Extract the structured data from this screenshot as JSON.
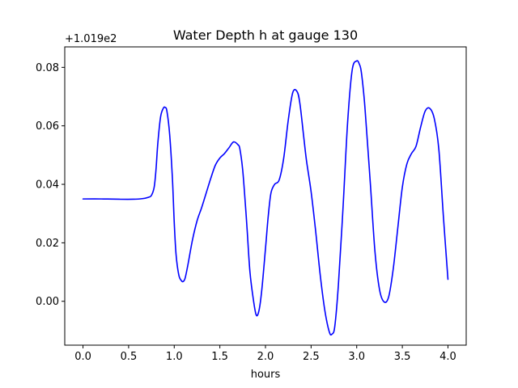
{
  "chart_data": {
    "type": "line",
    "title": "Water Depth h at gauge 130",
    "xlabel": "hours",
    "ylabel": "",
    "offset_label": "+1.019e2",
    "xlim": [
      -0.2,
      4.2
    ],
    "ylim": [
      -0.015,
      0.087
    ],
    "xticks": [
      0.0,
      0.5,
      1.0,
      1.5,
      2.0,
      2.5,
      3.0,
      3.5,
      4.0
    ],
    "xtick_labels": [
      "0.0",
      "0.5",
      "1.0",
      "1.5",
      "2.0",
      "2.5",
      "3.0",
      "3.5",
      "4.0"
    ],
    "yticks": [
      0.0,
      0.02,
      0.04,
      0.06,
      0.08
    ],
    "ytick_labels": [
      "0.00",
      "0.02",
      "0.04",
      "0.06",
      "0.08"
    ],
    "grid": false,
    "series_color": "#0000ff",
    "series": [
      {
        "x": [
          0.0,
          0.2,
          0.4,
          0.55,
          0.65,
          0.72,
          0.75,
          0.78,
          0.8,
          0.82,
          0.85,
          0.88,
          0.9,
          0.92,
          0.95,
          0.98,
          1.0,
          1.02,
          1.05,
          1.08,
          1.1,
          1.12,
          1.15,
          1.2,
          1.25,
          1.3,
          1.35,
          1.4,
          1.45,
          1.5,
          1.55,
          1.6,
          1.65,
          1.7,
          1.72,
          1.75,
          1.78,
          1.8,
          1.83,
          1.87,
          1.9,
          1.93,
          1.96,
          2.0,
          2.03,
          2.06,
          2.1,
          2.15,
          2.2,
          2.25,
          2.3,
          2.35,
          2.38,
          2.42,
          2.45,
          2.5,
          2.55,
          2.6,
          2.65,
          2.7,
          2.73,
          2.76,
          2.8,
          2.85,
          2.9,
          2.95,
          3.0,
          3.03,
          3.05,
          3.08,
          3.1,
          3.15,
          3.2,
          3.25,
          3.3,
          3.35,
          3.4,
          3.45,
          3.5,
          3.55,
          3.6,
          3.65,
          3.7,
          3.75,
          3.8,
          3.85,
          3.9,
          3.95,
          4.0
        ],
        "y": [
          0.035,
          0.035,
          0.0349,
          0.0349,
          0.0351,
          0.0356,
          0.0362,
          0.039,
          0.045,
          0.054,
          0.063,
          0.066,
          0.0663,
          0.065,
          0.057,
          0.042,
          0.027,
          0.016,
          0.009,
          0.007,
          0.0068,
          0.008,
          0.0125,
          0.021,
          0.0275,
          0.032,
          0.037,
          0.042,
          0.0465,
          0.049,
          0.0505,
          0.0525,
          0.0545,
          0.0535,
          0.052,
          0.045,
          0.033,
          0.024,
          0.01,
          0.0,
          -0.0048,
          -0.003,
          0.004,
          0.018,
          0.029,
          0.037,
          0.04,
          0.0415,
          0.049,
          0.062,
          0.0715,
          0.0715,
          0.067,
          0.056,
          0.048,
          0.0375,
          0.024,
          0.009,
          -0.003,
          -0.0105,
          -0.0112,
          -0.0085,
          0.006,
          0.032,
          0.061,
          0.079,
          0.0822,
          0.081,
          0.0785,
          0.07,
          0.062,
          0.04,
          0.017,
          0.004,
          -0.0002,
          0.0015,
          0.011,
          0.025,
          0.039,
          0.047,
          0.0505,
          0.053,
          0.0595,
          0.065,
          0.066,
          0.0625,
          0.052,
          0.029,
          0.0075
        ]
      }
    ]
  }
}
